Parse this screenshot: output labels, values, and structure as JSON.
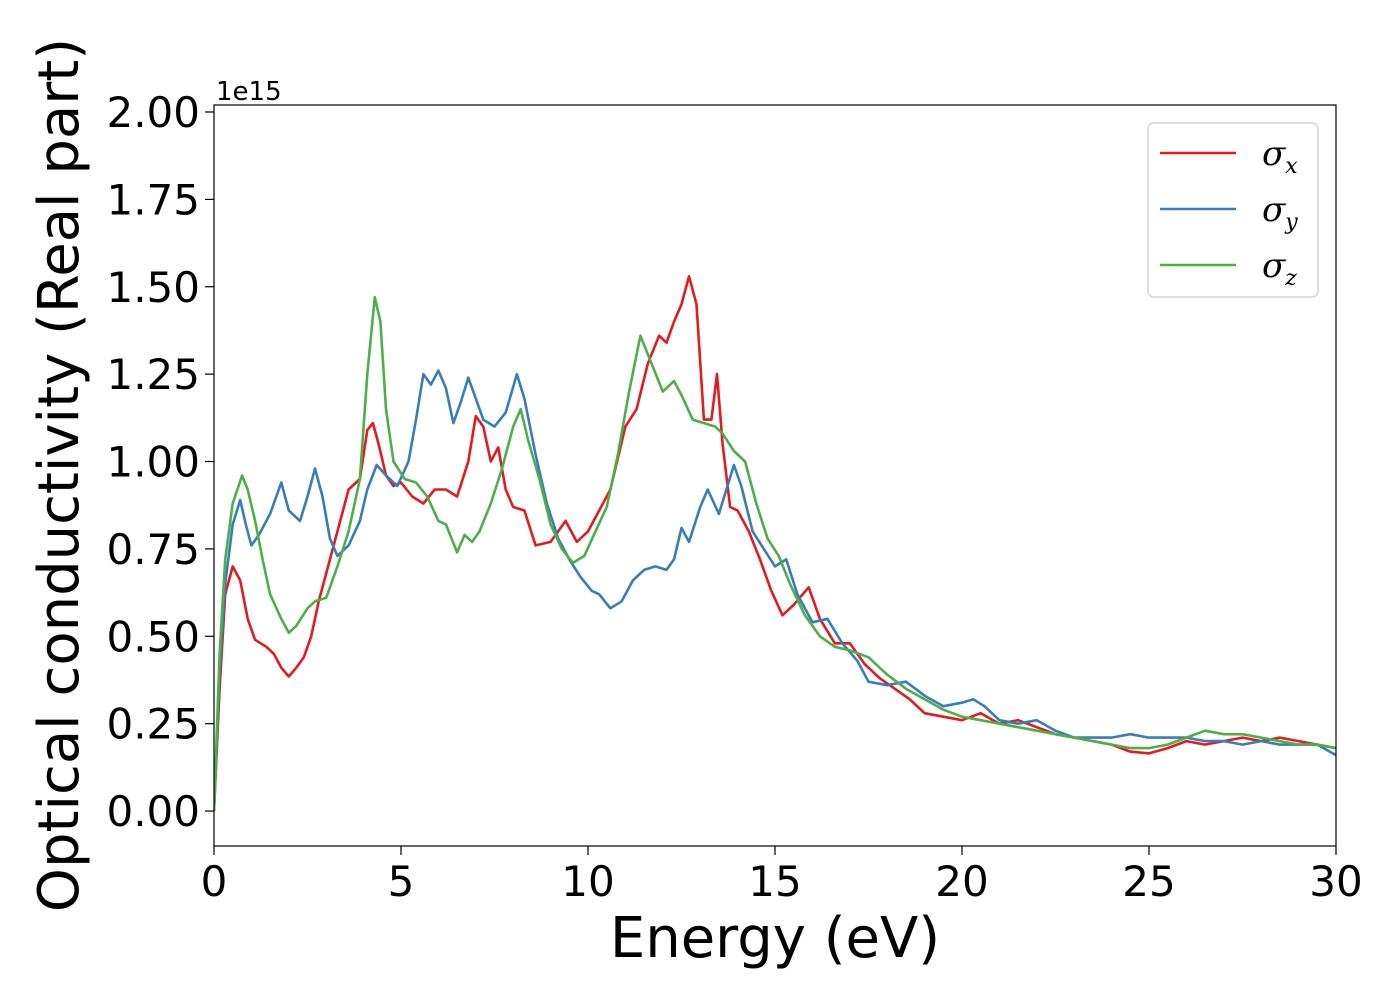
{
  "chart_data": {
    "type": "line",
    "xlabel": "Energy (eV)",
    "ylabel": "Optical conductivity (Real part)",
    "y_offset_text": "1e15",
    "xlim": [
      0,
      30
    ],
    "ylim": [
      -0.1,
      2.02
    ],
    "x_ticks": [
      0,
      5,
      10,
      15,
      20,
      25,
      30
    ],
    "x_tick_labels": [
      "0",
      "5",
      "10",
      "15",
      "20",
      "25",
      "30"
    ],
    "y_ticks": [
      0,
      0.25,
      0.5,
      0.75,
      1.0,
      1.25,
      1.5,
      1.75,
      2.0
    ],
    "y_tick_labels": [
      "0.00",
      "0.25",
      "0.50",
      "0.75",
      "1.00",
      "1.25",
      "1.50",
      "1.75",
      "2.00"
    ],
    "grid": false,
    "legend_position": "top-right",
    "series": [
      {
        "name": "σx",
        "symbol": "σ",
        "subscript": "x",
        "color": "#e41a1c",
        "points": [
          [
            0,
            0
          ],
          [
            0.15,
            0.35
          ],
          [
            0.3,
            0.62
          ],
          [
            0.5,
            0.7
          ],
          [
            0.7,
            0.66
          ],
          [
            0.9,
            0.55
          ],
          [
            1.1,
            0.49
          ],
          [
            1.4,
            0.47
          ],
          [
            1.6,
            0.45
          ],
          [
            1.8,
            0.41
          ],
          [
            2.0,
            0.385
          ],
          [
            2.2,
            0.41
          ],
          [
            2.4,
            0.44
          ],
          [
            2.6,
            0.5
          ],
          [
            2.8,
            0.6
          ],
          [
            3.0,
            0.68
          ],
          [
            3.3,
            0.8
          ],
          [
            3.6,
            0.92
          ],
          [
            3.9,
            0.95
          ],
          [
            4.1,
            1.09
          ],
          [
            4.25,
            1.11
          ],
          [
            4.4,
            1.05
          ],
          [
            4.6,
            0.96
          ],
          [
            4.8,
            0.93
          ],
          [
            5.0,
            0.94
          ],
          [
            5.3,
            0.9
          ],
          [
            5.6,
            0.88
          ],
          [
            5.9,
            0.92
          ],
          [
            6.2,
            0.92
          ],
          [
            6.5,
            0.9
          ],
          [
            6.8,
            1.0
          ],
          [
            7.0,
            1.13
          ],
          [
            7.2,
            1.1
          ],
          [
            7.4,
            1.0
          ],
          [
            7.6,
            1.04
          ],
          [
            7.8,
            0.92
          ],
          [
            8.0,
            0.87
          ],
          [
            8.3,
            0.86
          ],
          [
            8.6,
            0.76
          ],
          [
            9.0,
            0.77
          ],
          [
            9.4,
            0.83
          ],
          [
            9.7,
            0.77
          ],
          [
            10.0,
            0.8
          ],
          [
            10.3,
            0.86
          ],
          [
            10.6,
            0.92
          ],
          [
            11.0,
            1.1
          ],
          [
            11.3,
            1.15
          ],
          [
            11.6,
            1.28
          ],
          [
            11.9,
            1.36
          ],
          [
            12.1,
            1.34
          ],
          [
            12.3,
            1.4
          ],
          [
            12.5,
            1.45
          ],
          [
            12.7,
            1.53
          ],
          [
            12.9,
            1.45
          ],
          [
            13.1,
            1.12
          ],
          [
            13.3,
            1.12
          ],
          [
            13.45,
            1.25
          ],
          [
            13.6,
            1.05
          ],
          [
            13.8,
            0.87
          ],
          [
            14.0,
            0.86
          ],
          [
            14.3,
            0.8
          ],
          [
            14.6,
            0.72
          ],
          [
            14.9,
            0.63
          ],
          [
            15.2,
            0.56
          ],
          [
            15.5,
            0.59
          ],
          [
            15.9,
            0.64
          ],
          [
            16.2,
            0.55
          ],
          [
            16.6,
            0.48
          ],
          [
            17.0,
            0.48
          ],
          [
            17.4,
            0.42
          ],
          [
            17.8,
            0.38
          ],
          [
            18.2,
            0.35
          ],
          [
            18.6,
            0.32
          ],
          [
            19.0,
            0.28
          ],
          [
            19.5,
            0.27
          ],
          [
            20.0,
            0.26
          ],
          [
            20.5,
            0.28
          ],
          [
            21.0,
            0.25
          ],
          [
            21.5,
            0.26
          ],
          [
            22.0,
            0.24
          ],
          [
            22.5,
            0.22
          ],
          [
            23.0,
            0.21
          ],
          [
            23.5,
            0.2
          ],
          [
            24.0,
            0.19
          ],
          [
            24.5,
            0.17
          ],
          [
            25.0,
            0.165
          ],
          [
            25.5,
            0.18
          ],
          [
            26.0,
            0.2
          ],
          [
            26.5,
            0.19
          ],
          [
            27.0,
            0.2
          ],
          [
            27.5,
            0.21
          ],
          [
            28.0,
            0.2
          ],
          [
            28.5,
            0.21
          ],
          [
            29.0,
            0.2
          ],
          [
            29.5,
            0.19
          ],
          [
            30.0,
            0.18
          ]
        ]
      },
      {
        "name": "σy",
        "symbol": "σ",
        "subscript": "y",
        "color": "#377eb8",
        "points": [
          [
            0,
            0
          ],
          [
            0.15,
            0.4
          ],
          [
            0.3,
            0.65
          ],
          [
            0.5,
            0.82
          ],
          [
            0.7,
            0.89
          ],
          [
            0.85,
            0.82
          ],
          [
            1.0,
            0.76
          ],
          [
            1.2,
            0.79
          ],
          [
            1.5,
            0.85
          ],
          [
            1.8,
            0.94
          ],
          [
            2.0,
            0.86
          ],
          [
            2.3,
            0.83
          ],
          [
            2.5,
            0.9
          ],
          [
            2.7,
            0.98
          ],
          [
            2.9,
            0.9
          ],
          [
            3.1,
            0.78
          ],
          [
            3.3,
            0.73
          ],
          [
            3.6,
            0.76
          ],
          [
            3.9,
            0.83
          ],
          [
            4.1,
            0.92
          ],
          [
            4.35,
            0.99
          ],
          [
            4.6,
            0.96
          ],
          [
            4.9,
            0.93
          ],
          [
            5.2,
            1.0
          ],
          [
            5.4,
            1.12
          ],
          [
            5.6,
            1.25
          ],
          [
            5.8,
            1.22
          ],
          [
            6.0,
            1.26
          ],
          [
            6.2,
            1.21
          ],
          [
            6.4,
            1.11
          ],
          [
            6.6,
            1.17
          ],
          [
            6.8,
            1.24
          ],
          [
            7.0,
            1.18
          ],
          [
            7.2,
            1.12
          ],
          [
            7.5,
            1.1
          ],
          [
            7.8,
            1.14
          ],
          [
            8.1,
            1.25
          ],
          [
            8.3,
            1.18
          ],
          [
            8.6,
            1.02
          ],
          [
            8.9,
            0.88
          ],
          [
            9.2,
            0.78
          ],
          [
            9.5,
            0.72
          ],
          [
            9.8,
            0.67
          ],
          [
            10.1,
            0.63
          ],
          [
            10.3,
            0.62
          ],
          [
            10.6,
            0.58
          ],
          [
            10.9,
            0.6
          ],
          [
            11.2,
            0.66
          ],
          [
            11.5,
            0.69
          ],
          [
            11.8,
            0.7
          ],
          [
            12.1,
            0.69
          ],
          [
            12.3,
            0.72
          ],
          [
            12.5,
            0.81
          ],
          [
            12.7,
            0.77
          ],
          [
            13.0,
            0.87
          ],
          [
            13.2,
            0.92
          ],
          [
            13.5,
            0.85
          ],
          [
            13.7,
            0.92
          ],
          [
            13.9,
            0.99
          ],
          [
            14.1,
            0.93
          ],
          [
            14.4,
            0.8
          ],
          [
            14.7,
            0.75
          ],
          [
            15.0,
            0.7
          ],
          [
            15.3,
            0.72
          ],
          [
            15.6,
            0.62
          ],
          [
            16.0,
            0.54
          ],
          [
            16.4,
            0.55
          ],
          [
            16.8,
            0.48
          ],
          [
            17.2,
            0.43
          ],
          [
            17.5,
            0.37
          ],
          [
            18.0,
            0.36
          ],
          [
            18.5,
            0.37
          ],
          [
            19.0,
            0.33
          ],
          [
            19.5,
            0.3
          ],
          [
            20.0,
            0.31
          ],
          [
            20.3,
            0.32
          ],
          [
            20.6,
            0.3
          ],
          [
            21.0,
            0.26
          ],
          [
            21.5,
            0.25
          ],
          [
            22.0,
            0.26
          ],
          [
            22.5,
            0.23
          ],
          [
            23.0,
            0.21
          ],
          [
            23.5,
            0.21
          ],
          [
            24.0,
            0.21
          ],
          [
            24.5,
            0.22
          ],
          [
            25.0,
            0.21
          ],
          [
            25.5,
            0.21
          ],
          [
            26.0,
            0.21
          ],
          [
            26.5,
            0.2
          ],
          [
            27.0,
            0.2
          ],
          [
            27.5,
            0.19
          ],
          [
            28.0,
            0.2
          ],
          [
            28.5,
            0.19
          ],
          [
            29.0,
            0.19
          ],
          [
            29.5,
            0.19
          ],
          [
            30.0,
            0.16
          ]
        ]
      },
      {
        "name": "σz",
        "symbol": "σ",
        "subscript": "z",
        "color": "#4daf4a",
        "points": [
          [
            0,
            0
          ],
          [
            0.15,
            0.45
          ],
          [
            0.3,
            0.72
          ],
          [
            0.5,
            0.88
          ],
          [
            0.75,
            0.96
          ],
          [
            0.9,
            0.92
          ],
          [
            1.1,
            0.83
          ],
          [
            1.3,
            0.72
          ],
          [
            1.5,
            0.62
          ],
          [
            1.8,
            0.55
          ],
          [
            2.0,
            0.51
          ],
          [
            2.2,
            0.53
          ],
          [
            2.5,
            0.58
          ],
          [
            2.7,
            0.6
          ],
          [
            3.0,
            0.61
          ],
          [
            3.3,
            0.7
          ],
          [
            3.6,
            0.8
          ],
          [
            3.9,
            0.95
          ],
          [
            4.1,
            1.25
          ],
          [
            4.3,
            1.47
          ],
          [
            4.45,
            1.4
          ],
          [
            4.6,
            1.15
          ],
          [
            4.8,
            1.0
          ],
          [
            5.1,
            0.95
          ],
          [
            5.4,
            0.94
          ],
          [
            5.7,
            0.9
          ],
          [
            6.0,
            0.83
          ],
          [
            6.2,
            0.82
          ],
          [
            6.5,
            0.74
          ],
          [
            6.7,
            0.79
          ],
          [
            6.9,
            0.77
          ],
          [
            7.1,
            0.8
          ],
          [
            7.4,
            0.88
          ],
          [
            7.7,
            0.98
          ],
          [
            8.0,
            1.1
          ],
          [
            8.2,
            1.15
          ],
          [
            8.4,
            1.06
          ],
          [
            8.7,
            0.95
          ],
          [
            9.0,
            0.82
          ],
          [
            9.3,
            0.75
          ],
          [
            9.6,
            0.71
          ],
          [
            9.9,
            0.73
          ],
          [
            10.2,
            0.8
          ],
          [
            10.5,
            0.87
          ],
          [
            10.8,
            1.02
          ],
          [
            11.1,
            1.2
          ],
          [
            11.4,
            1.36
          ],
          [
            11.7,
            1.28
          ],
          [
            12.0,
            1.2
          ],
          [
            12.3,
            1.23
          ],
          [
            12.5,
            1.19
          ],
          [
            12.8,
            1.12
          ],
          [
            13.1,
            1.11
          ],
          [
            13.4,
            1.1
          ],
          [
            13.6,
            1.08
          ],
          [
            13.9,
            1.03
          ],
          [
            14.2,
            1.0
          ],
          [
            14.5,
            0.88
          ],
          [
            14.8,
            0.78
          ],
          [
            15.1,
            0.73
          ],
          [
            15.4,
            0.65
          ],
          [
            15.8,
            0.56
          ],
          [
            16.2,
            0.5
          ],
          [
            16.6,
            0.47
          ],
          [
            17.0,
            0.46
          ],
          [
            17.5,
            0.44
          ],
          [
            18.0,
            0.39
          ],
          [
            18.5,
            0.35
          ],
          [
            19.0,
            0.32
          ],
          [
            19.5,
            0.29
          ],
          [
            20.0,
            0.27
          ],
          [
            20.5,
            0.26
          ],
          [
            21.0,
            0.25
          ],
          [
            21.5,
            0.24
          ],
          [
            22.0,
            0.23
          ],
          [
            22.5,
            0.22
          ],
          [
            23.0,
            0.21
          ],
          [
            23.5,
            0.2
          ],
          [
            24.0,
            0.19
          ],
          [
            24.5,
            0.18
          ],
          [
            25.0,
            0.18
          ],
          [
            25.5,
            0.19
          ],
          [
            26.0,
            0.21
          ],
          [
            26.5,
            0.23
          ],
          [
            27.0,
            0.22
          ],
          [
            27.5,
            0.22
          ],
          [
            28.0,
            0.21
          ],
          [
            28.5,
            0.2
          ],
          [
            29.0,
            0.19
          ],
          [
            29.5,
            0.19
          ],
          [
            30.0,
            0.18
          ]
        ]
      }
    ]
  }
}
